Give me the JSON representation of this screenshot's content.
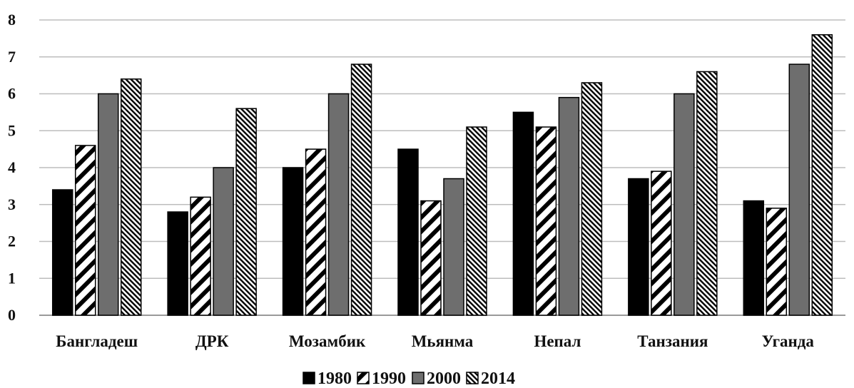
{
  "chart_data": {
    "type": "bar",
    "categories": [
      "Бангладеш",
      "ДРК",
      "Мозамбик",
      "Мьянма",
      "Непал",
      "Танзания",
      "Уганда"
    ],
    "series": [
      {
        "name": "1980",
        "values": [
          3.4,
          2.8,
          4.0,
          4.5,
          5.5,
          3.7,
          3.1
        ]
      },
      {
        "name": "1990",
        "values": [
          4.6,
          3.2,
          4.5,
          3.1,
          5.1,
          3.9,
          2.9
        ]
      },
      {
        "name": "2000",
        "values": [
          6.0,
          4.0,
          6.0,
          3.7,
          5.9,
          6.0,
          6.8
        ]
      },
      {
        "name": "2014",
        "values": [
          6.4,
          5.6,
          6.8,
          5.1,
          6.3,
          6.6,
          7.6
        ]
      }
    ],
    "yticks": [
      "0",
      "1",
      "2",
      "3",
      "4",
      "5",
      "6",
      "7",
      "8"
    ],
    "ylim": [
      0,
      8
    ],
    "grid": true,
    "legend_position": "bottom-center",
    "title": "",
    "xlabel": "",
    "ylabel": ""
  },
  "colors": {
    "1980": "#000000",
    "1990": "#ffffff",
    "2000": "#6e6e6e",
    "2014": "#ffffff",
    "grid": "#bdbdbd",
    "axis": "#9a9a9a"
  },
  "patterns": {
    "1990": "wide-diagonal-stripes",
    "2014": "fine-diagonal-hatch"
  }
}
